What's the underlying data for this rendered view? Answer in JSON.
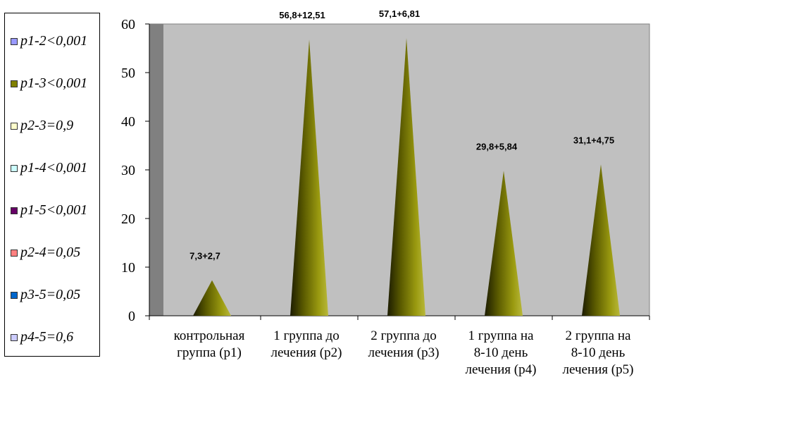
{
  "chart_data": {
    "type": "bar",
    "bar_shape": "cone",
    "title": "",
    "xlabel": "",
    "ylabel": "",
    "ylim": [
      0,
      60
    ],
    "yticks": [
      0,
      10,
      20,
      30,
      40,
      50,
      60
    ],
    "grid": false,
    "legend_position": "left",
    "categories": [
      [
        "контрольная",
        "группа (р1)"
      ],
      [
        "1 группа до",
        "лечения (р2)"
      ],
      [
        "2 группа до",
        "лечения (р3)"
      ],
      [
        "1 группа на",
        "8-10 день",
        "лечения (р4)"
      ],
      [
        "2 группа на",
        "8-10 день",
        "лечения (р5)"
      ]
    ],
    "values": [
      7.3,
      56.8,
      57.1,
      29.8,
      31.1
    ],
    "data_labels": [
      "7,3+2,7",
      "56,8+12,51",
      "57,1+6,81",
      "29,8+5,84",
      "31,1+4,75"
    ],
    "bar_color": "#808000",
    "plot_background": "#c0c0c0",
    "legend": [
      {
        "label": "p1-2<0,001",
        "color": "#9999ff"
      },
      {
        "label": "p1-3<0,001",
        "color": "#808000"
      },
      {
        "label": "p2-3=0,9",
        "color": "#ffffcc"
      },
      {
        "label": "p1-4<0,001",
        "color": "#ccffff"
      },
      {
        "label": "p1-5<0,001",
        "color": "#660066"
      },
      {
        "label": "p2-4=0,05",
        "color": "#ff8080"
      },
      {
        "label": "p3-5=0,05",
        "color": "#0066cc"
      },
      {
        "label": "p4-5=0,6",
        "color": "#ccccff"
      }
    ]
  }
}
